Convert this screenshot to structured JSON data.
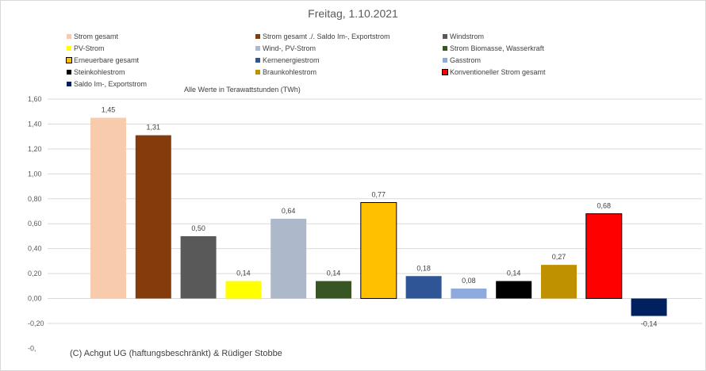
{
  "chart_data": {
    "type": "bar",
    "title": "Freitag, 1.10.2021",
    "subtitle": "Alle Werte in Terawattstunden (TWh)",
    "categories": [
      "Strom gesamt",
      "Strom gesamt ./. Saldo Im-, Exportstrom",
      "Windstrom",
      "PV-Strom",
      "Wind-, PV-Strom",
      "Strom Biomasse, Wasserkraft",
      "Erneuerbare gesamt",
      "Kernenergiestrom",
      "Gasstrom",
      "Steinkohlestrom",
      "Braunkohlestrom",
      "Konventioneller Strom gesamt",
      "Saldo Im-, Exportstrom"
    ],
    "values": [
      1.45,
      1.31,
      0.5,
      0.14,
      0.64,
      0.14,
      0.77,
      0.18,
      0.08,
      0.14,
      0.27,
      0.68,
      -0.14
    ],
    "value_labels": [
      "1,45",
      "1,31",
      "0,50",
      "0,14",
      "0,64",
      "0,14",
      "0,77",
      "0,18",
      "0,08",
      "0,14",
      "0,27",
      "0,68",
      "-0,14"
    ],
    "colors": [
      "#f8cbad",
      "#843c0c",
      "#595959",
      "#ffff00",
      "#adb9ca",
      "#375623",
      "#ffc000",
      "#2f5597",
      "#8faadc",
      "#000000",
      "#bf9000",
      "#ff0000",
      "#002060"
    ],
    "bordered": [
      false,
      false,
      false,
      false,
      false,
      false,
      true,
      false,
      false,
      false,
      false,
      true,
      false
    ],
    "ylim": [
      -0.2,
      1.6
    ],
    "ytick_values": [
      1.6,
      1.4,
      1.2,
      1.0,
      0.8,
      0.6,
      0.4,
      0.2,
      0.0,
      -0.2
    ],
    "ytick_labels": [
      "1,60",
      "1,40",
      "1,20",
      "1,00",
      "0,80",
      "0,60",
      "0,40",
      "0,20",
      "0,00",
      "-0,20"
    ],
    "ytick_extra": "-0,",
    "grid": true,
    "legend": "top",
    "xlabel": "",
    "ylabel": ""
  },
  "copyright": "(C) Achgut UG (haftungsbeschränkt) & Rüdiger Stobbe"
}
